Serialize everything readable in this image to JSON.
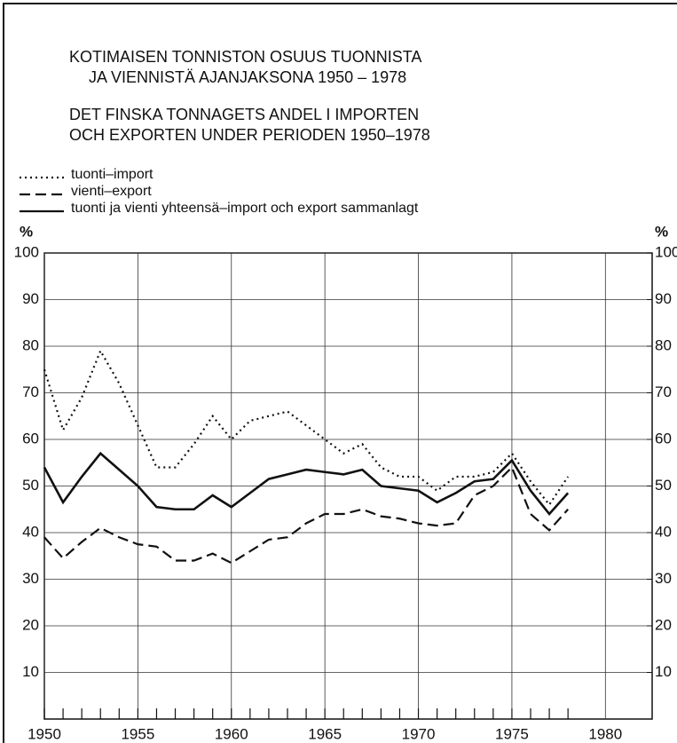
{
  "chart_data": {
    "type": "line",
    "title": [
      "KOTIMAISEN TONNISTON OSUUS TUONNISTA",
      "JA VIENNISTÄ AJANJAKSONA 1950 – 1978"
    ],
    "subtitle": [
      "DET FINSKA TONNAGETS ANDEL I IMPORTEN",
      "OCH EXPORTEN UNDER PERIODEN 1950–1978"
    ],
    "ylabel": "%",
    "y2label": "%",
    "x": [
      1950,
      1951,
      1952,
      1953,
      1954,
      1955,
      1956,
      1957,
      1958,
      1959,
      1960,
      1961,
      1962,
      1963,
      1964,
      1965,
      1966,
      1967,
      1968,
      1969,
      1970,
      1971,
      1972,
      1973,
      1974,
      1975,
      1976,
      1977,
      1978
    ],
    "series": [
      {
        "name": "tuonti–import",
        "color": "#111111",
        "style": "dotted",
        "values": [
          75,
          62,
          69,
          79,
          72,
          63,
          54,
          54,
          59,
          65,
          60,
          64,
          65,
          66,
          63,
          60,
          57,
          59,
          54,
          52,
          52,
          49,
          52,
          52,
          53,
          57,
          51,
          46,
          52
        ]
      },
      {
        "name": "vienti–export",
        "color": "#111111",
        "style": "dashed",
        "values": [
          39,
          34.5,
          38,
          41,
          39,
          37.5,
          37,
          34,
          34,
          35.5,
          33.5,
          36,
          38.5,
          39,
          42,
          44,
          44,
          45,
          43.5,
          43,
          42,
          41.5,
          42,
          48,
          50,
          54,
          44,
          40.5,
          45
        ]
      },
      {
        "name": "tuonti ja vienti yhteensä–import och export sammanlagt",
        "color": "#111111",
        "style": "solid",
        "values": [
          54,
          46.5,
          52,
          57,
          53.5,
          50,
          45.5,
          45,
          45,
          48,
          45.5,
          48.5,
          51.5,
          52.5,
          53.5,
          53,
          52.5,
          53.5,
          50,
          49.5,
          49,
          46.5,
          48.5,
          51,
          51.5,
          55.5,
          49,
          44,
          48.5
        ]
      }
    ],
    "xlim": [
      1950,
      1982.5
    ],
    "xticks": [
      1950,
      1955,
      1960,
      1965,
      1970,
      1975,
      1980
    ],
    "ylim": [
      0,
      100
    ],
    "yticks": [
      10,
      20,
      30,
      40,
      50,
      60,
      70,
      80,
      90,
      100
    ],
    "y2lim": [
      0,
      100
    ],
    "y2ticks": [
      10,
      20,
      30,
      40,
      50,
      60,
      70,
      80,
      90,
      100
    ],
    "grid": true
  }
}
